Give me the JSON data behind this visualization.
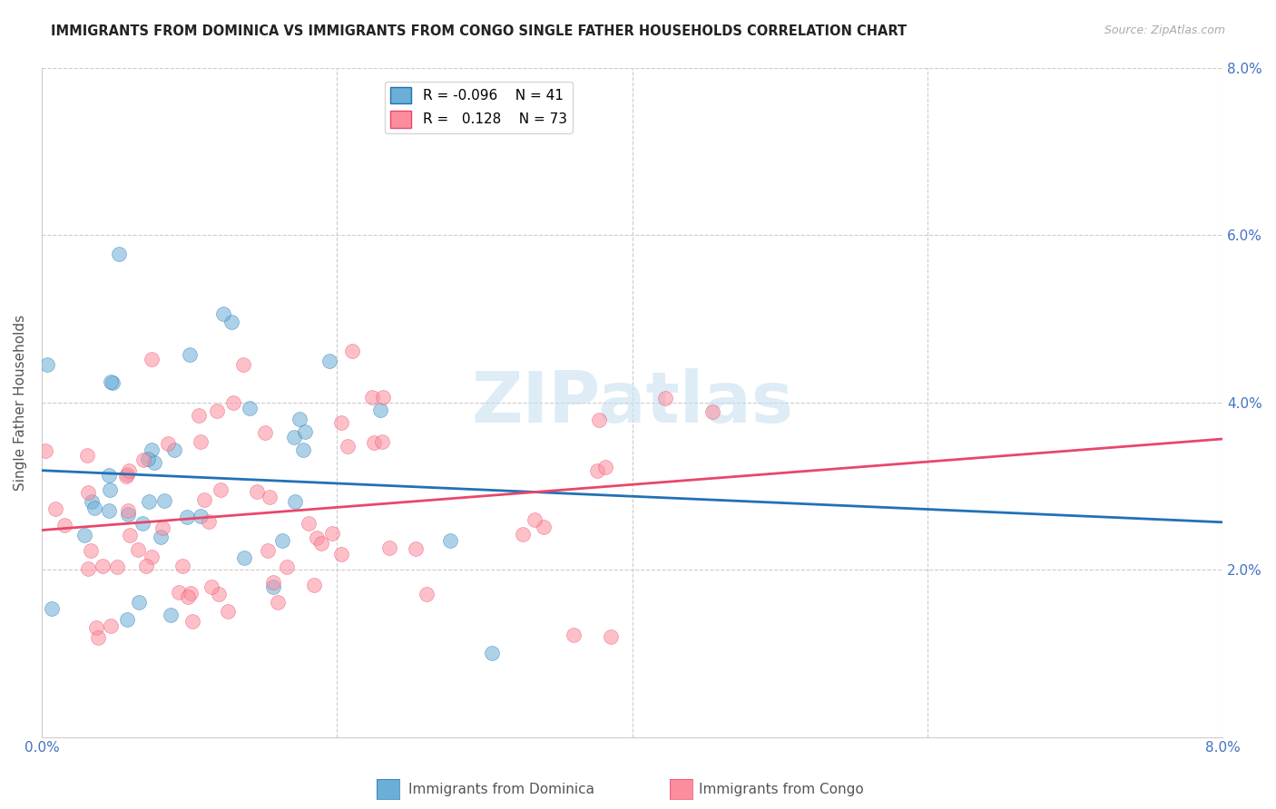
{
  "title": "IMMIGRANTS FROM DOMINICA VS IMMIGRANTS FROM CONGO SINGLE FATHER HOUSEHOLDS CORRELATION CHART",
  "source": "Source: ZipAtlas.com",
  "ylabel": "Single Father Households",
  "xlim": [
    0.0,
    0.08
  ],
  "ylim": [
    0.0,
    0.08
  ],
  "color_dominica": "#6baed6",
  "color_congo": "#fc8d9c",
  "line_color_dominica": "#2171b5",
  "line_color_congo": "#e8476a",
  "legend_R_dominica": "-0.096",
  "legend_N_dominica": "41",
  "legend_R_congo": "0.128",
  "legend_N_congo": "73",
  "tick_color": "#4472c4",
  "grid_color": "#cccccc",
  "watermark_text": "ZIPatlas",
  "watermark_color": "#c8e0f0",
  "bottom_legend_dominica": "Immigrants from Dominica",
  "bottom_legend_congo": "Immigrants from Congo"
}
